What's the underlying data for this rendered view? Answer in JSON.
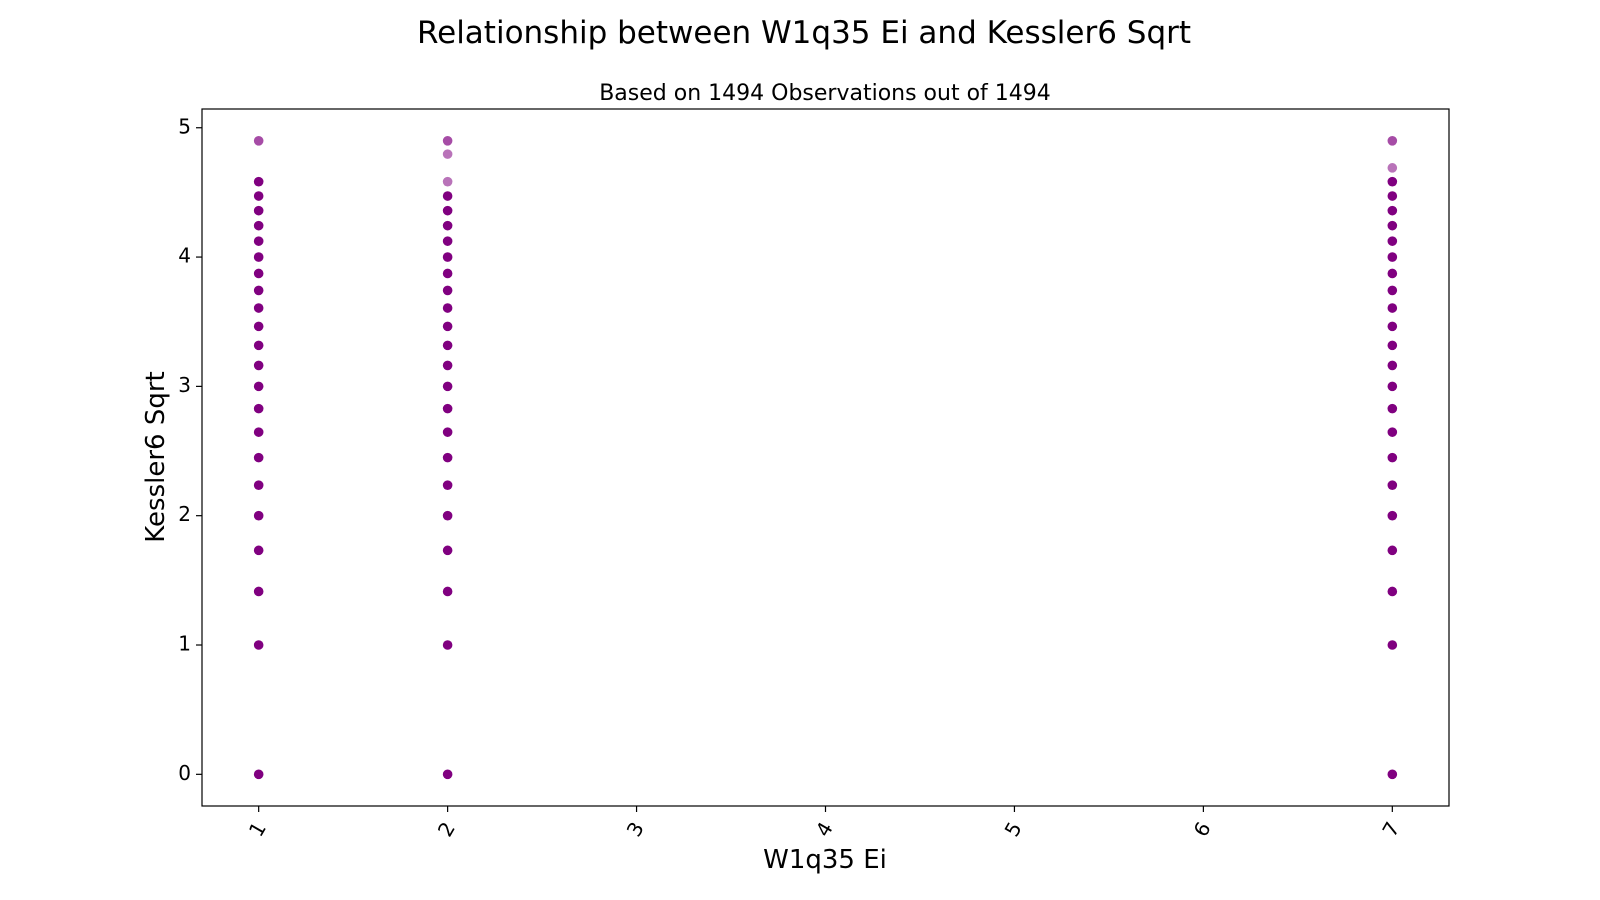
{
  "chart_data": {
    "type": "scatter",
    "title": "Relationship between W1q35 Ei and Kessler6 Sqrt",
    "subtitle": "Based on 1494 Observations out of 1494",
    "xlabel": "W1q35 Ei",
    "ylabel": "Kessler6 Sqrt",
    "xlim": [
      0.7,
      7.3
    ],
    "ylim": [
      -0.245,
      5.145
    ],
    "x_ticks": [
      1,
      2,
      3,
      4,
      5,
      6,
      7
    ],
    "y_ticks": [
      0,
      1,
      2,
      3,
      4,
      5
    ],
    "x_tick_rotation_deg": 60,
    "grid": false,
    "marker_color": "#800080",
    "points": [
      {
        "x": 1,
        "y": 4.899,
        "opacity": 0.7
      },
      {
        "x": 1,
        "y": 4.583
      },
      {
        "x": 1,
        "y": 4.472
      },
      {
        "x": 1,
        "y": 4.359
      },
      {
        "x": 1,
        "y": 4.243
      },
      {
        "x": 1,
        "y": 4.123
      },
      {
        "x": 1,
        "y": 4.0
      },
      {
        "x": 1,
        "y": 3.873
      },
      {
        "x": 1,
        "y": 3.742
      },
      {
        "x": 1,
        "y": 3.606
      },
      {
        "x": 1,
        "y": 3.464
      },
      {
        "x": 1,
        "y": 3.317
      },
      {
        "x": 1,
        "y": 3.162
      },
      {
        "x": 1,
        "y": 3.0
      },
      {
        "x": 1,
        "y": 2.828
      },
      {
        "x": 1,
        "y": 2.646
      },
      {
        "x": 1,
        "y": 2.449
      },
      {
        "x": 1,
        "y": 2.236
      },
      {
        "x": 1,
        "y": 2.0
      },
      {
        "x": 1,
        "y": 1.732
      },
      {
        "x": 1,
        "y": 1.414
      },
      {
        "x": 1,
        "y": 1.0
      },
      {
        "x": 1,
        "y": 0.0
      },
      {
        "x": 2,
        "y": 4.899,
        "opacity": 0.7
      },
      {
        "x": 2,
        "y": 4.796,
        "opacity": 0.55
      },
      {
        "x": 2,
        "y": 4.583,
        "opacity": 0.55
      },
      {
        "x": 2,
        "y": 4.472
      },
      {
        "x": 2,
        "y": 4.359
      },
      {
        "x": 2,
        "y": 4.243
      },
      {
        "x": 2,
        "y": 4.123
      },
      {
        "x": 2,
        "y": 4.0
      },
      {
        "x": 2,
        "y": 3.873
      },
      {
        "x": 2,
        "y": 3.742
      },
      {
        "x": 2,
        "y": 3.606
      },
      {
        "x": 2,
        "y": 3.464
      },
      {
        "x": 2,
        "y": 3.317
      },
      {
        "x": 2,
        "y": 3.162
      },
      {
        "x": 2,
        "y": 3.0
      },
      {
        "x": 2,
        "y": 2.828
      },
      {
        "x": 2,
        "y": 2.646
      },
      {
        "x": 2,
        "y": 2.449
      },
      {
        "x": 2,
        "y": 2.236
      },
      {
        "x": 2,
        "y": 2.0
      },
      {
        "x": 2,
        "y": 1.732
      },
      {
        "x": 2,
        "y": 1.414
      },
      {
        "x": 2,
        "y": 1.0
      },
      {
        "x": 2,
        "y": 0.0
      },
      {
        "x": 7,
        "y": 4.899,
        "opacity": 0.7
      },
      {
        "x": 7,
        "y": 4.69,
        "opacity": 0.55
      },
      {
        "x": 7,
        "y": 4.583
      },
      {
        "x": 7,
        "y": 4.472
      },
      {
        "x": 7,
        "y": 4.359
      },
      {
        "x": 7,
        "y": 4.243
      },
      {
        "x": 7,
        "y": 4.123
      },
      {
        "x": 7,
        "y": 4.0
      },
      {
        "x": 7,
        "y": 3.873
      },
      {
        "x": 7,
        "y": 3.742
      },
      {
        "x": 7,
        "y": 3.606
      },
      {
        "x": 7,
        "y": 3.464
      },
      {
        "x": 7,
        "y": 3.317
      },
      {
        "x": 7,
        "y": 3.162
      },
      {
        "x": 7,
        "y": 3.0
      },
      {
        "x": 7,
        "y": 2.828
      },
      {
        "x": 7,
        "y": 2.646
      },
      {
        "x": 7,
        "y": 2.449
      },
      {
        "x": 7,
        "y": 2.236
      },
      {
        "x": 7,
        "y": 2.0
      },
      {
        "x": 7,
        "y": 1.732
      },
      {
        "x": 7,
        "y": 1.414
      },
      {
        "x": 7,
        "y": 1.0
      },
      {
        "x": 7,
        "y": 0.0
      }
    ]
  }
}
